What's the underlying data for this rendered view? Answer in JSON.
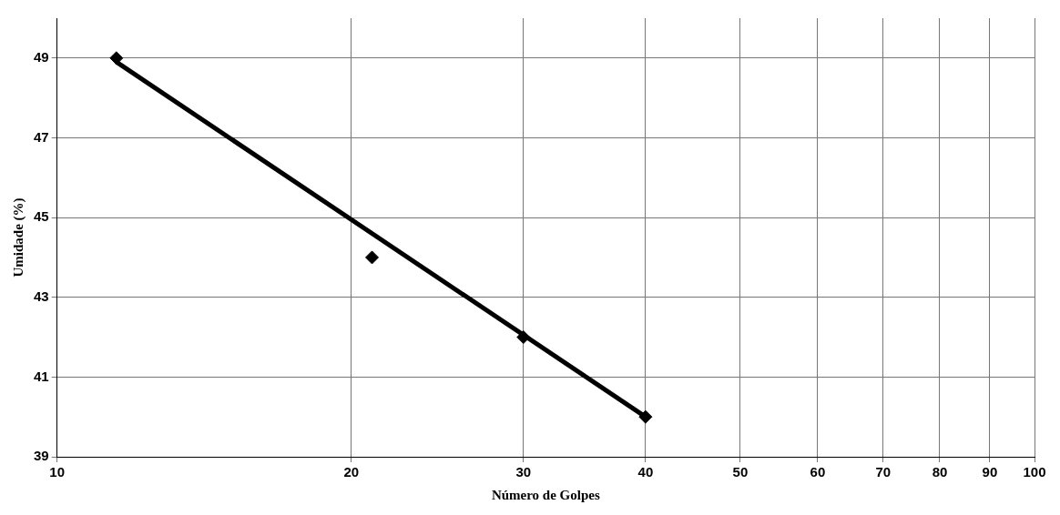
{
  "chart_data": {
    "type": "scatter",
    "xlabel": "Número de Golpes",
    "ylabel": "Umidade (%)",
    "log": "x",
    "grid": true,
    "marker": "diamond",
    "xlim": [
      10,
      100
    ],
    "xticks": [
      10,
      20,
      30,
      40,
      50,
      60,
      70,
      80,
      90,
      100
    ],
    "ylim": [
      39,
      50
    ],
    "yticks": [
      39,
      41,
      43,
      45,
      47,
      49
    ],
    "series": [
      {
        "type": "scatter",
        "color": "#000000",
        "x": [
          11.5,
          21,
          30,
          40
        ],
        "values": [
          49,
          44,
          42,
          40
        ]
      },
      {
        "type": "line",
        "color": "#000000",
        "x": [
          11.5,
          40
        ],
        "values": [
          48.9,
          40
        ],
        "marker": "none",
        "line_style": "solid"
      }
    ]
  }
}
